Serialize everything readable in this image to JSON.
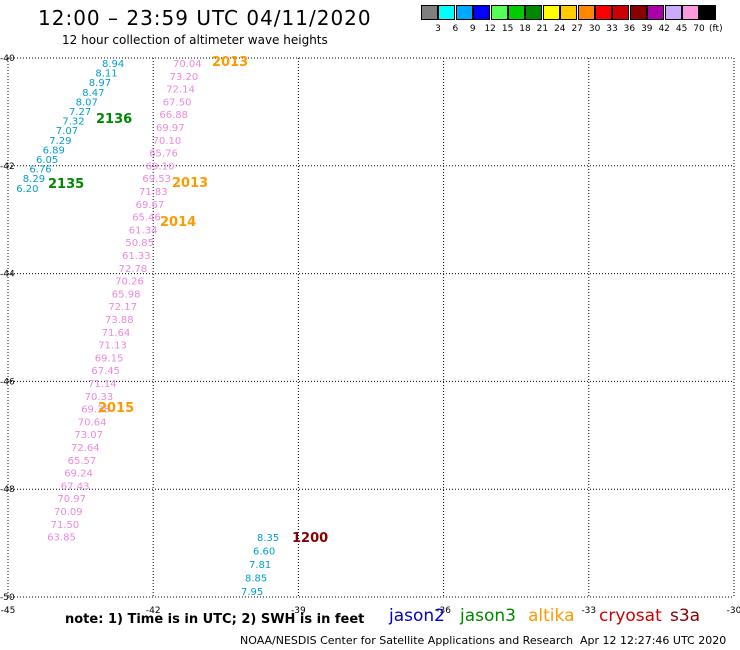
{
  "header": {
    "title": "12:00 – 23:59 UTC 04/11/2020",
    "subtitle": "12 hour collection of altimeter wave heights"
  },
  "legend": {
    "unit": "(ft)",
    "bins": [
      {
        "label": "3",
        "color": "#7f7f7f"
      },
      {
        "label": "6",
        "color": "#00ffff"
      },
      {
        "label": "9",
        "color": "#00a8ff"
      },
      {
        "label": "12",
        "color": "#0000ff"
      },
      {
        "label": "15",
        "color": "#55ff55"
      },
      {
        "label": "18",
        "color": "#00cc00"
      },
      {
        "label": "21",
        "color": "#008800"
      },
      {
        "label": "24",
        "color": "#ffff00"
      },
      {
        "label": "27",
        "color": "#ffcc00"
      },
      {
        "label": "30",
        "color": "#ff8800"
      },
      {
        "label": "33",
        "color": "#ff0000"
      },
      {
        "label": "36",
        "color": "#cc0000"
      },
      {
        "label": "39",
        "color": "#880000"
      },
      {
        "label": "42",
        "color": "#aa00aa"
      },
      {
        "label": "45",
        "color": "#ccaaff"
      },
      {
        "label": "70",
        "color": "#ff99dd"
      },
      {
        "label": "",
        "color": "#000000"
      }
    ]
  },
  "map": {
    "lat_range": [
      -50,
      -40
    ],
    "lon_range": [
      -45,
      -30
    ],
    "lat_ticks": [
      "-40",
      "-42",
      "-44",
      "-46",
      "-48",
      "-50"
    ],
    "lon_ticks": [
      "-45",
      "-42",
      "-39",
      "-36",
      "-33",
      "-30"
    ],
    "colors": {
      "jason2": "#0000cc",
      "jason3": "#008800",
      "altika": "#ff9900",
      "cryosat": "#cc0000",
      "s3a": "#880000",
      "cyan_track": "#00a0d0",
      "pink_track": "#ee88dd"
    },
    "track_cyan_north": [
      "8.94",
      "8.11",
      "8.97",
      "8.47",
      "8.07",
      "7.27",
      "7.32",
      "7.07",
      "7.29",
      "6.89",
      "6.05",
      "6.76",
      "8.29",
      "6.20"
    ],
    "track_pink": [
      "70.04",
      "73.20",
      "72.14",
      "67.50",
      "66.88",
      "69.97",
      "70.10",
      "65.76",
      "69.10",
      "69.53",
      "71.83",
      "69.67",
      "65.46",
      "61.34",
      "50.85",
      "61.33",
      "72.78",
      "70.26",
      "65.98",
      "72.17",
      "73.88",
      "71.64",
      "71.13",
      "69.15",
      "67.45",
      "71.14",
      "70.33",
      "69.38",
      "70.64",
      "73.07",
      "72.64",
      "65.57",
      "69.24",
      "67.43",
      "70.97",
      "70.09",
      "71.50",
      "63.85"
    ],
    "track_cyan_south": [
      "8.35",
      "6.60",
      "7.81",
      "8.85",
      "7.95"
    ],
    "time_labels": [
      {
        "text": "2013",
        "sat": "altika"
      },
      {
        "text": "2136",
        "sat": "jason3"
      },
      {
        "text": "2135",
        "sat": "jason3"
      },
      {
        "text": "2013",
        "sat": "altika"
      },
      {
        "text": "2014",
        "sat": "altika"
      },
      {
        "text": "2015",
        "sat": "altika"
      },
      {
        "text": "1200",
        "sat": "s3a"
      }
    ]
  },
  "footer": {
    "note": "note:  1) Time is in UTC;  2) SWH is in feet",
    "satellites": [
      {
        "name": "jason2",
        "color": "#0000cc"
      },
      {
        "name": "jason3",
        "color": "#008800"
      },
      {
        "name": "altika",
        "color": "#ff9900"
      },
      {
        "name": "cryosat",
        "color": "#cc0000"
      },
      {
        "name": "s3a",
        "color": "#880000"
      }
    ],
    "credit": "NOAA/NESDIS Center for Satellite Applications and Research",
    "timestamp": "Apr 12 12:27:46 UTC 2020"
  }
}
